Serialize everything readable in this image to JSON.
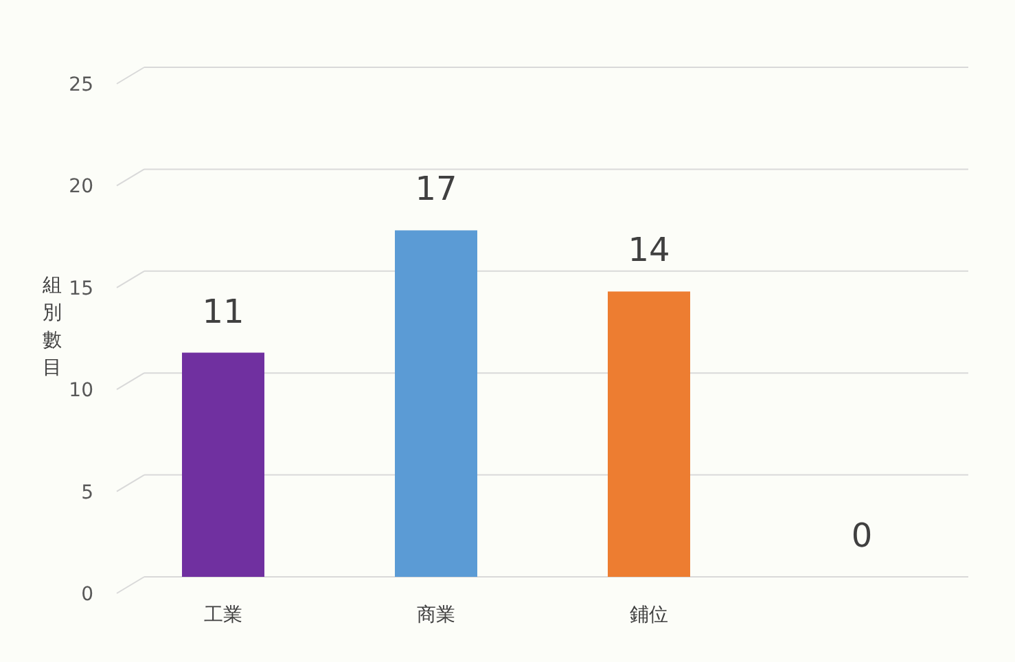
{
  "chart_data": {
    "type": "bar",
    "ylabel": "組別數目",
    "categories": [
      "工業",
      "商業",
      "鋪位",
      null
    ],
    "values": [
      11,
      17,
      14,
      0
    ],
    "colors": [
      "#7030a0",
      "#5b9bd5",
      "#ed7d31",
      "#a5a5a5"
    ],
    "ylim": [
      0,
      25
    ],
    "yticks": [
      0,
      5,
      10,
      15,
      20,
      25
    ],
    "grid": "y",
    "data_labels": true
  }
}
